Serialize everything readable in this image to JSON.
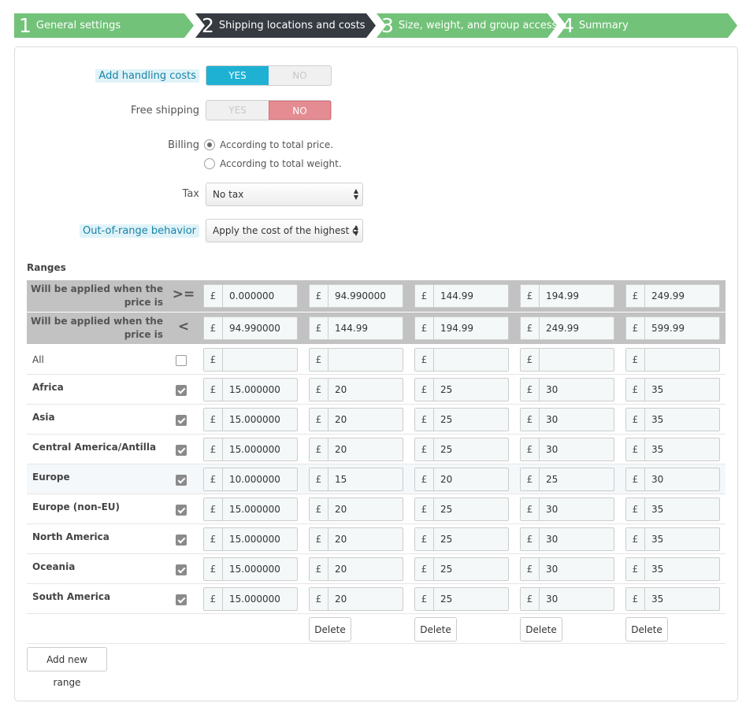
{
  "steps": [
    {
      "num": "1",
      "label": "General settings",
      "color": "#72c279"
    },
    {
      "num": "2",
      "label": "Shipping locations and costs",
      "color": "#363a41"
    },
    {
      "num": "3",
      "label": "Size, weight, and group access",
      "color": "#72c279"
    },
    {
      "num": "4",
      "label": "Summary",
      "color": "#72c279"
    }
  ],
  "form": {
    "handling": {
      "label": "Add handling costs",
      "yes": "YES",
      "no": "NO",
      "value": "yes"
    },
    "free_shipping": {
      "label": "Free shipping",
      "yes": "YES",
      "no": "NO",
      "value": "no"
    },
    "billing": {
      "label": "Billing",
      "options": [
        "According to total price.",
        "According to total weight."
      ],
      "selected": 0
    },
    "tax": {
      "label": "Tax",
      "value": "No tax"
    },
    "out_of_range": {
      "label": "Out-of-range behavior",
      "value": "Apply the cost of the highest d"
    }
  },
  "ranges": {
    "title": "Ranges",
    "currency": "£",
    "min_row": {
      "label": "Will be applied when the price is",
      "op": ">=",
      "values": [
        "0.000000",
        "94.990000",
        "144.99",
        "194.99",
        "249.99"
      ]
    },
    "max_row": {
      "label": "Will be applied when the price is",
      "op": "<",
      "values": [
        "94.990000",
        "144.99",
        "194.99",
        "249.99",
        "599.99"
      ]
    },
    "all_row": {
      "label": "All",
      "checked": false,
      "values": [
        "",
        "",
        "",
        "",
        ""
      ]
    },
    "zones": [
      {
        "name": "Africa",
        "checked": true,
        "values": [
          "15.000000",
          "20",
          "25",
          "30",
          "35"
        ]
      },
      {
        "name": "Asia",
        "checked": true,
        "values": [
          "15.000000",
          "20",
          "25",
          "30",
          "35"
        ]
      },
      {
        "name": "Central America/Antilla",
        "checked": true,
        "values": [
          "15.000000",
          "20",
          "25",
          "30",
          "35"
        ]
      },
      {
        "name": "Europe",
        "checked": true,
        "values": [
          "10.000000",
          "15",
          "20",
          "25",
          "30"
        ],
        "highlight": true
      },
      {
        "name": "Europe (non-EU)",
        "checked": true,
        "values": [
          "15.000000",
          "20",
          "25",
          "30",
          "35"
        ]
      },
      {
        "name": "North America",
        "checked": true,
        "values": [
          "15.000000",
          "20",
          "25",
          "30",
          "35"
        ]
      },
      {
        "name": "Oceania",
        "checked": true,
        "values": [
          "15.000000",
          "20",
          "25",
          "30",
          "35"
        ]
      },
      {
        "name": "South America",
        "checked": true,
        "values": [
          "15.000000",
          "20",
          "25",
          "30",
          "35"
        ]
      }
    ],
    "delete_label": "Delete",
    "add_label": "Add new range"
  }
}
